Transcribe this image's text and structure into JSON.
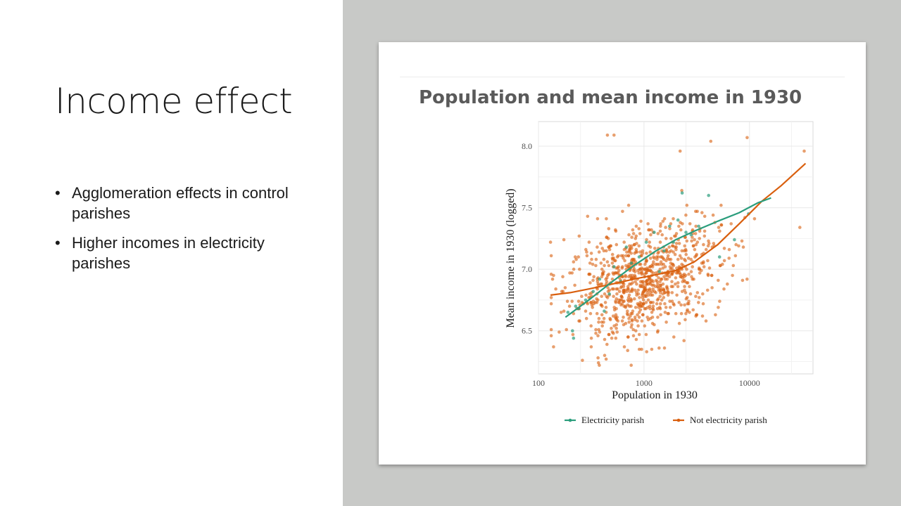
{
  "slide": {
    "title": "Income effect",
    "bullets": [
      "Agglomeration effects in control parishes",
      "Higher incomes in electricity parishes"
    ]
  },
  "colors": {
    "background_right": "#c8c9c7",
    "electricity": "#2a9d7c",
    "not_electricity": "#d95f0e"
  },
  "chart_data": {
    "type": "scatter",
    "title": "Population and mean income in 1930",
    "xlabel": "Population in 1930",
    "ylabel": "Mean income in 1930 (logged)",
    "xscale": "log10",
    "xlim": [
      100,
      40000
    ],
    "ylim": [
      6.15,
      8.2
    ],
    "xticks": [
      {
        "value": 100,
        "label": "100"
      },
      {
        "value": 1000,
        "label": "1000"
      },
      {
        "value": 10000,
        "label": "10000"
      }
    ],
    "yticks": [
      {
        "value": 6.5,
        "label": "6.5"
      },
      {
        "value": 7.0,
        "label": "7.0"
      },
      {
        "value": 7.5,
        "label": "7.5"
      },
      {
        "value": 8.0,
        "label": "8.0"
      }
    ],
    "grid": true,
    "legend_position": "bottom",
    "series": [
      {
        "name": "Electricity parish",
        "color": "#2a9d7c",
        "points": [
          [
            190,
            6.65
          ],
          [
            210,
            6.5
          ],
          [
            215,
            6.44
          ],
          [
            225,
            6.7
          ],
          [
            240,
            6.68
          ],
          [
            280,
            6.75
          ],
          [
            330,
            6.82
          ],
          [
            380,
            6.92
          ],
          [
            420,
            6.66
          ],
          [
            470,
            6.8
          ],
          [
            520,
            7.02
          ],
          [
            600,
            6.9
          ],
          [
            680,
            7.18
          ],
          [
            760,
            7.05
          ],
          [
            900,
            7.1
          ],
          [
            1050,
            7.22
          ],
          [
            1250,
            7.3
          ],
          [
            1400,
            6.98
          ],
          [
            1550,
            7.15
          ],
          [
            1750,
            7.35
          ],
          [
            1900,
            7.22
          ],
          [
            2100,
            7.4
          ],
          [
            2300,
            7.62
          ],
          [
            2500,
            7.3
          ],
          [
            2800,
            7.28
          ],
          [
            3300,
            7.35
          ],
          [
            4100,
            7.6
          ],
          [
            5200,
            7.1
          ],
          [
            7200,
            7.24
          ],
          [
            9800,
            7.45
          ]
        ],
        "fit": [
          [
            180,
            6.61
          ],
          [
            300,
            6.75
          ],
          [
            500,
            6.9
          ],
          [
            800,
            7.03
          ],
          [
            1300,
            7.15
          ],
          [
            2000,
            7.24
          ],
          [
            3000,
            7.31
          ],
          [
            5000,
            7.39
          ],
          [
            8000,
            7.46
          ],
          [
            12000,
            7.54
          ],
          [
            16000,
            7.58
          ]
        ]
      },
      {
        "name": "Not electricity parish",
        "color": "#d95f0e",
        "points": [],
        "fit": [
          [
            130,
            6.79
          ],
          [
            200,
            6.81
          ],
          [
            300,
            6.84
          ],
          [
            500,
            6.88
          ],
          [
            800,
            6.92
          ],
          [
            1200,
            6.95
          ],
          [
            2000,
            6.99
          ],
          [
            3000,
            7.06
          ],
          [
            5000,
            7.2
          ],
          [
            8000,
            7.37
          ],
          [
            13000,
            7.55
          ],
          [
            20000,
            7.68
          ],
          [
            34000,
            7.86
          ]
        ]
      }
    ]
  }
}
